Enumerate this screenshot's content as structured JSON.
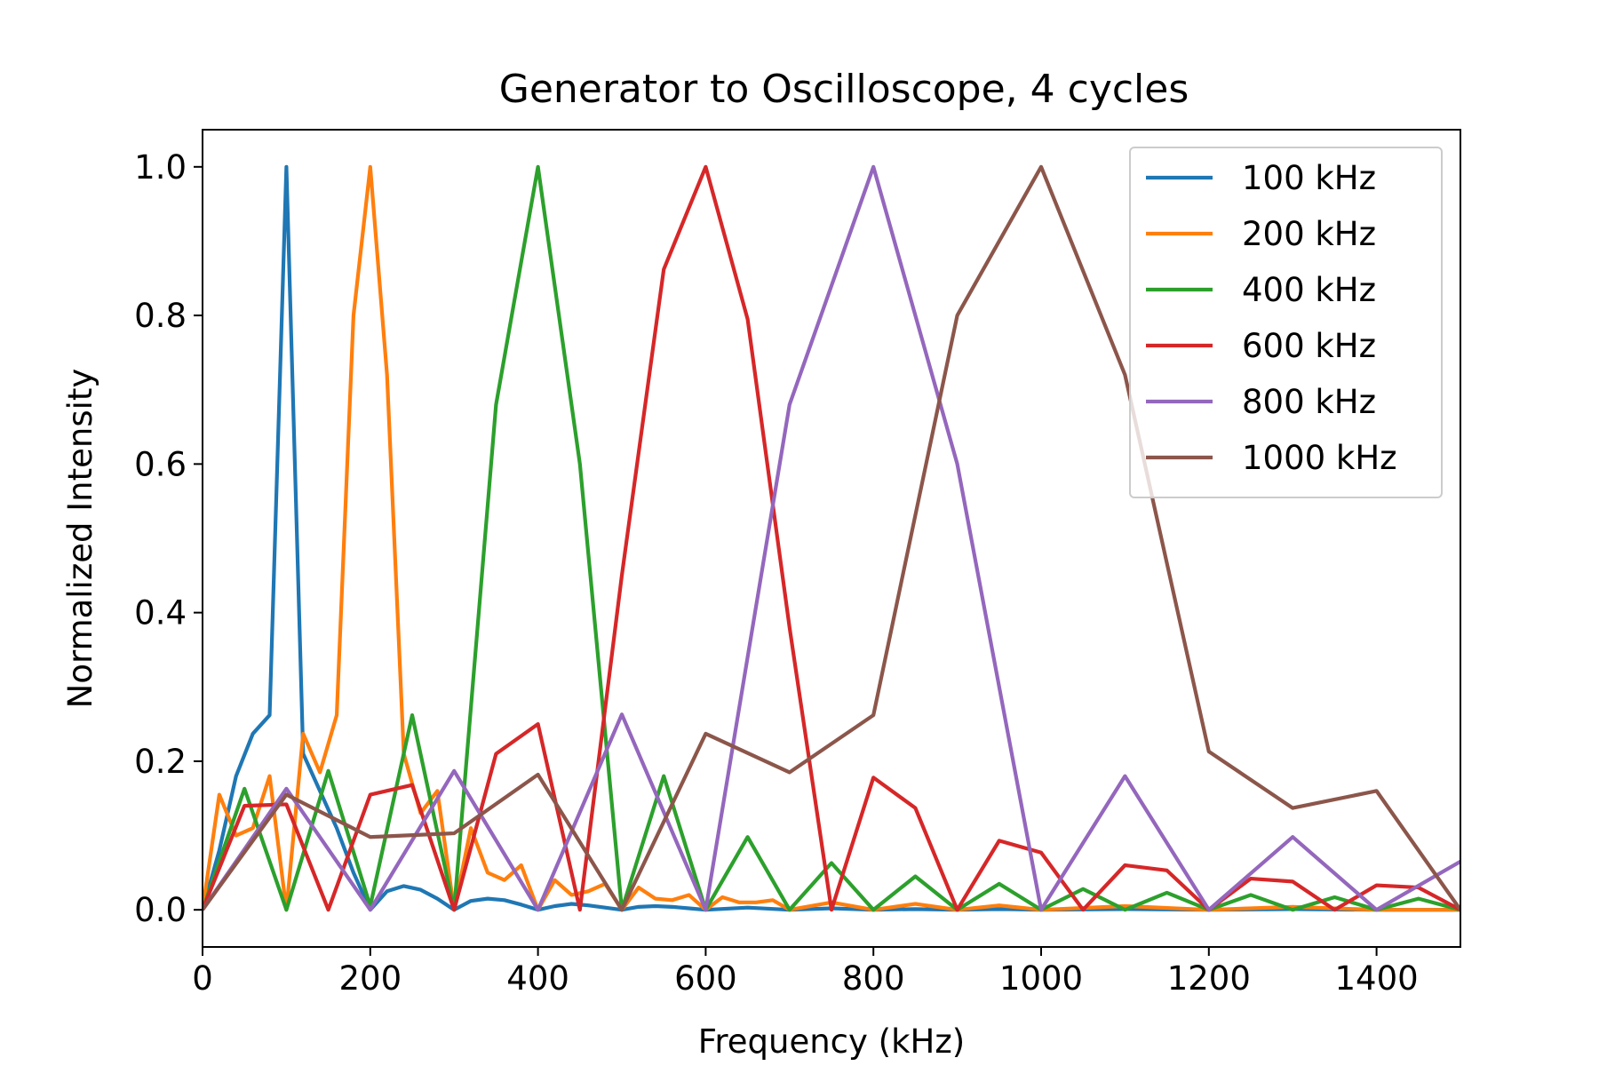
{
  "chart_data": {
    "type": "line",
    "title": "Generator to Oscilloscope, 4 cycles",
    "xlabel": "Frequency (kHz)",
    "ylabel": "Normalized Intensity",
    "xlim": [
      0,
      1500
    ],
    "ylim": [
      -0.05,
      1.05
    ],
    "xticks": [
      0,
      200,
      400,
      600,
      800,
      1000,
      1200,
      1400
    ],
    "yticks": [
      0.0,
      0.2,
      0.4,
      0.6,
      0.8,
      1.0
    ],
    "ytick_labels": [
      "0.0",
      "0.2",
      "0.4",
      "0.6",
      "0.8",
      "1.0"
    ],
    "grid": false,
    "legend_position": "top-right",
    "series": [
      {
        "name": "100 kHz",
        "color": "#1f77b4",
        "x": [
          0,
          20,
          40,
          60,
          80,
          100,
          120,
          140,
          160,
          180,
          200,
          220,
          240,
          260,
          280,
          300,
          320,
          340,
          360,
          380,
          400,
          420,
          440,
          460,
          480,
          500,
          520,
          540,
          560,
          580,
          600,
          650,
          700,
          750,
          800,
          850,
          900,
          950,
          1000,
          1100,
          1200,
          1300,
          1400,
          1500
        ],
        "y": [
          0,
          0.08,
          0.18,
          0.237,
          0.262,
          1.0,
          0.21,
          0.16,
          0.11,
          0.05,
          0,
          0.025,
          0.032,
          0.027,
          0.015,
          0,
          0.012,
          0.015,
          0.013,
          0.007,
          0,
          0.005,
          0.008,
          0.006,
          0.003,
          0,
          0.004,
          0.005,
          0.004,
          0.002,
          0,
          0.003,
          0,
          0.002,
          0,
          0.001,
          0,
          0.001,
          0,
          0.001,
          0,
          0.001,
          0,
          0
        ]
      },
      {
        "name": "200 kHz",
        "color": "#ff7f0e",
        "x": [
          0,
          20,
          40,
          60,
          80,
          100,
          120,
          140,
          160,
          180,
          200,
          220,
          240,
          260,
          280,
          300,
          320,
          340,
          360,
          380,
          400,
          420,
          440,
          460,
          480,
          500,
          520,
          540,
          560,
          580,
          600,
          620,
          640,
          660,
          680,
          700,
          750,
          800,
          850,
          900,
          950,
          1000,
          1100,
          1200,
          1300,
          1400,
          1500
        ],
        "y": [
          0,
          0.155,
          0.1,
          0.11,
          0.18,
          0,
          0.237,
          0.185,
          0.262,
          0.8,
          1.0,
          0.72,
          0.21,
          0.13,
          0.16,
          0,
          0.11,
          0.05,
          0.04,
          0.06,
          0,
          0.04,
          0.02,
          0.025,
          0.035,
          0,
          0.03,
          0.015,
          0.013,
          0.02,
          0,
          0.017,
          0.01,
          0.01,
          0.013,
          0,
          0.01,
          0,
          0.008,
          0,
          0.006,
          0,
          0.005,
          0,
          0.004,
          0,
          0
        ]
      },
      {
        "name": "400 kHz",
        "color": "#2ca02c",
        "x": [
          0,
          50,
          100,
          150,
          200,
          250,
          300,
          350,
          400,
          450,
          500,
          550,
          600,
          650,
          700,
          750,
          800,
          850,
          900,
          950,
          1000,
          1050,
          1100,
          1150,
          1200,
          1250,
          1300,
          1350,
          1400,
          1450,
          1500
        ],
        "y": [
          0,
          0.163,
          0,
          0.187,
          0.005,
          0.262,
          0,
          0.68,
          1.0,
          0.6,
          0,
          0.18,
          0,
          0.098,
          0,
          0.063,
          0,
          0.045,
          0,
          0.035,
          0,
          0.028,
          0,
          0.023,
          0,
          0.02,
          0,
          0.017,
          0,
          0.015,
          0
        ]
      },
      {
        "name": "600 kHz",
        "color": "#d62728",
        "x": [
          0,
          50,
          100,
          150,
          200,
          250,
          300,
          350,
          400,
          450,
          500,
          550,
          600,
          650,
          700,
          750,
          800,
          850,
          900,
          950,
          1000,
          1050,
          1100,
          1150,
          1200,
          1250,
          1300,
          1350,
          1400,
          1450,
          1500
        ],
        "y": [
          0,
          0.14,
          0.142,
          0,
          0.155,
          0.168,
          0,
          0.21,
          0.25,
          0,
          0.45,
          0.862,
          1.0,
          0.795,
          0.38,
          0,
          0.178,
          0.137,
          0,
          0.093,
          0.077,
          0,
          0.06,
          0.053,
          0,
          0.042,
          0.038,
          0,
          0.033,
          0.03,
          0
        ]
      },
      {
        "name": "800 kHz",
        "color": "#9467bd",
        "x": [
          0,
          100,
          200,
          300,
          400,
          500,
          600,
          700,
          800,
          900,
          1000,
          1100,
          1200,
          1300,
          1400,
          1500
        ],
        "y": [
          0,
          0.163,
          0,
          0.187,
          0,
          0.263,
          0,
          0.68,
          1.0,
          0.6,
          0,
          0.18,
          0,
          0.098,
          0,
          0.065
        ]
      },
      {
        "name": "1000 kHz",
        "color": "#8c564b",
        "x": [
          0,
          100,
          200,
          300,
          400,
          500,
          600,
          700,
          800,
          900,
          1000,
          1100,
          1200,
          1300,
          1400,
          1500
        ],
        "y": [
          0,
          0.155,
          0.098,
          0.103,
          0.182,
          0,
          0.237,
          0.185,
          0.262,
          0.8,
          1.0,
          0.72,
          0.213,
          0.137,
          0.16,
          0
        ]
      }
    ]
  }
}
